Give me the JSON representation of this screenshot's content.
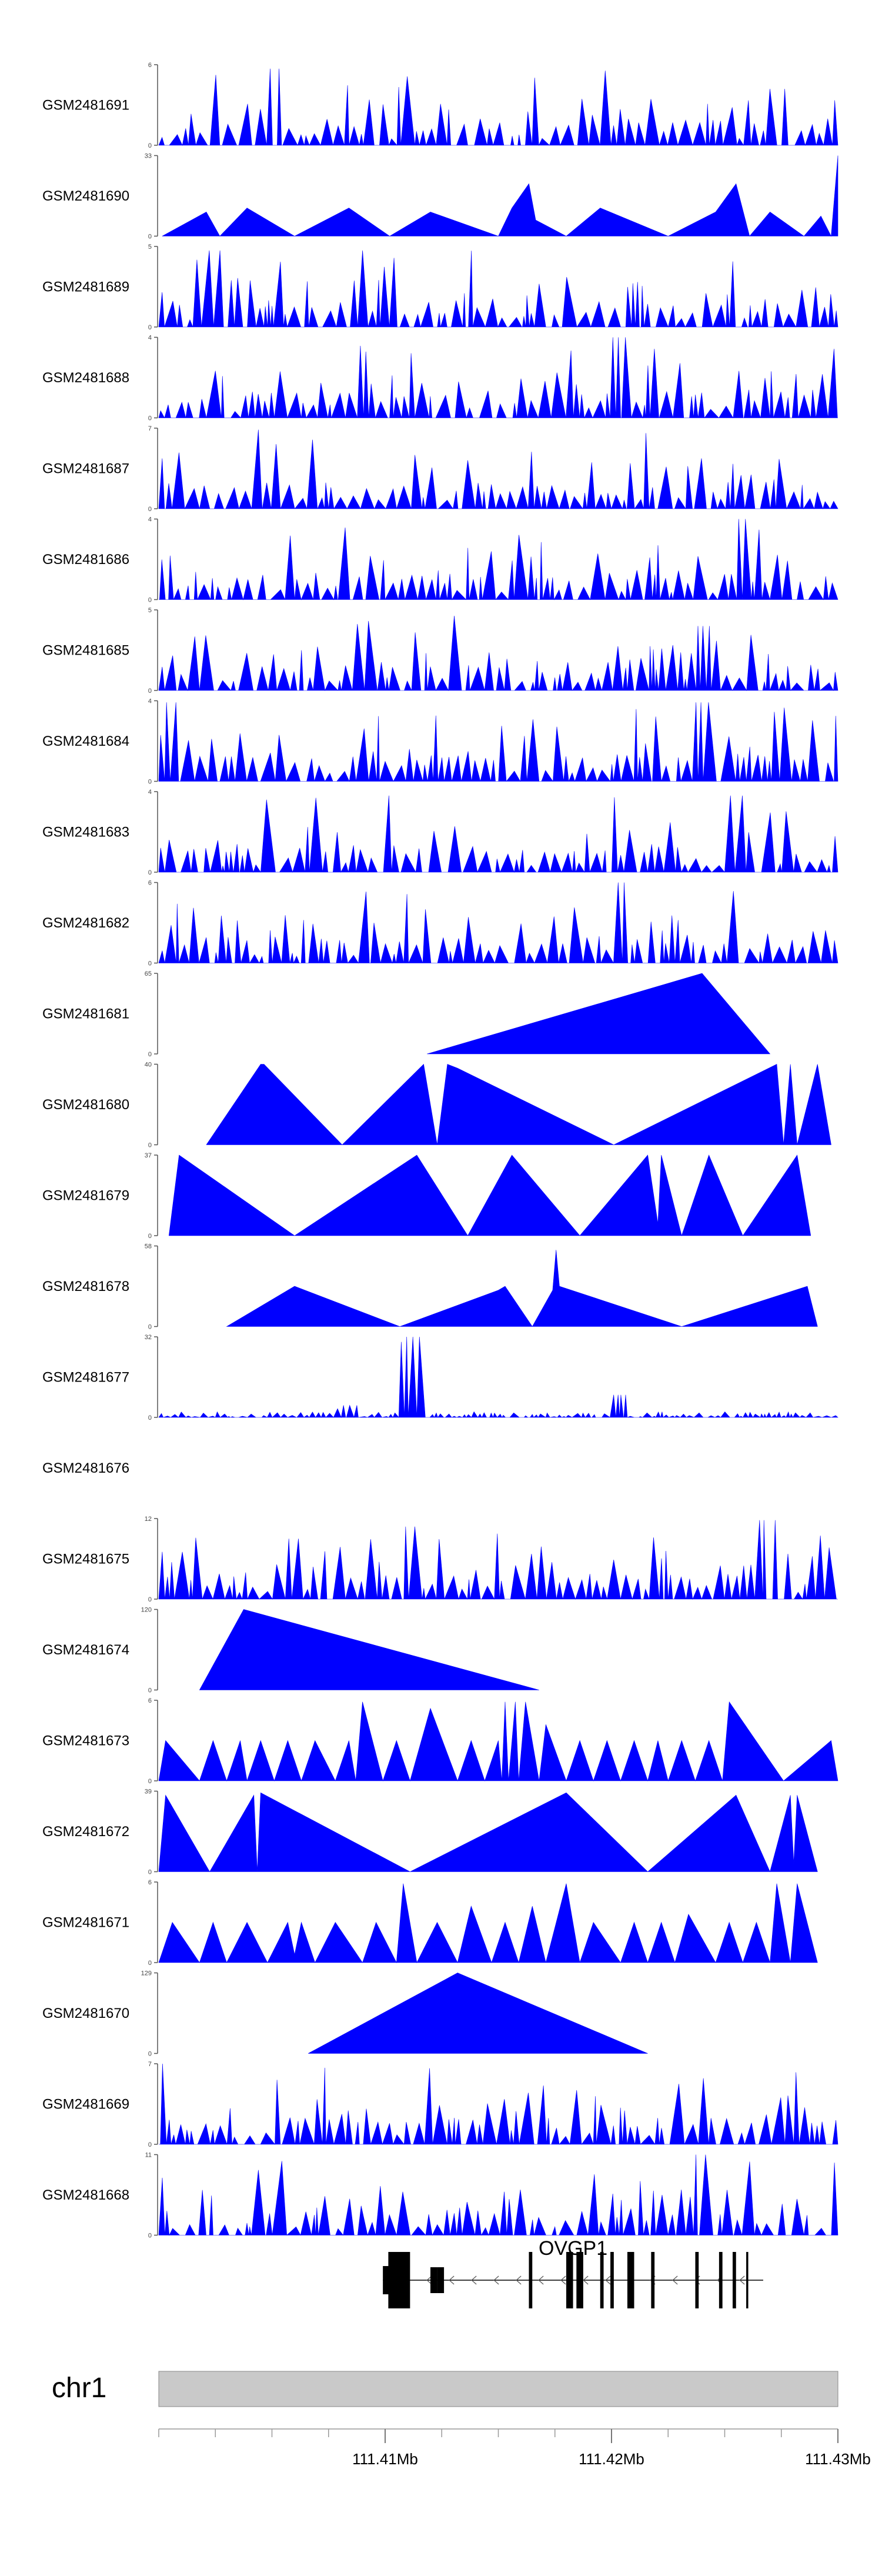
{
  "chart_data": {
    "type": "area",
    "chromosome": "chr1",
    "x_range_mb": [
      111.4,
      111.43
    ],
    "color": "#0000ff",
    "x_ticks": [
      {
        "value": 111.41,
        "label": "111.41Mb"
      },
      {
        "value": 111.42,
        "label": "111.42Mb"
      },
      {
        "value": 111.43,
        "label": "111.43Mb"
      }
    ],
    "minor_tick_step_mb": 0.0025,
    "tracks": [
      {
        "name": "GSM2481691",
        "ymax": 6,
        "ymax_label": "6",
        "kind": "spiky",
        "seed": 11,
        "peaks": [
          [
            0.16,
            0.95
          ],
          [
            0.91,
            0.7
          ]
        ]
      },
      {
        "name": "GSM2481690",
        "ymax": 33,
        "ymax_label": "33",
        "kind": "tri",
        "points": [
          [
            0.005,
            0
          ],
          [
            0.07,
            0.3
          ],
          [
            0.09,
            0
          ],
          [
            0.13,
            0.35
          ],
          [
            0.2,
            0
          ],
          [
            0.28,
            0.35
          ],
          [
            0.34,
            0
          ],
          [
            0.4,
            0.3
          ],
          [
            0.5,
            0
          ],
          [
            0.52,
            0.35
          ],
          [
            0.545,
            0.65
          ],
          [
            0.555,
            0.2
          ],
          [
            0.6,
            0
          ],
          [
            0.65,
            0.35
          ],
          [
            0.75,
            0
          ],
          [
            0.82,
            0.3
          ],
          [
            0.85,
            0.65
          ],
          [
            0.87,
            0
          ],
          [
            0.9,
            0.3
          ],
          [
            0.95,
            0
          ],
          [
            0.975,
            0.25
          ],
          [
            0.99,
            0
          ],
          [
            1.0,
            1.0
          ],
          [
            1.0,
            0
          ]
        ]
      },
      {
        "name": "GSM2481689",
        "ymax": 5,
        "ymax_label": "5",
        "kind": "spiky",
        "seed": 23,
        "peaks": [
          [
            0.08,
            0.95
          ],
          [
            0.3,
            0.95
          ]
        ]
      },
      {
        "name": "GSM2481688",
        "ymax": 4,
        "ymax_label": "4",
        "kind": "spiky",
        "seed": 37,
        "peaks": [
          [
            0.68,
            1.0
          ]
        ]
      },
      {
        "name": "GSM2481687",
        "ymax": 7,
        "ymax_label": "7",
        "kind": "spiky",
        "seed": 41,
        "peaks": [
          [
            0.14,
            0.98
          ]
        ]
      },
      {
        "name": "GSM2481686",
        "ymax": 4,
        "ymax_label": "4",
        "kind": "spiky",
        "seed": 53,
        "peaks": [
          [
            0.86,
            1.0
          ]
        ]
      },
      {
        "name": "GSM2481685",
        "ymax": 5,
        "ymax_label": "5",
        "kind": "spiky",
        "seed": 59,
        "peaks": [
          [
            0.8,
            0.8
          ]
        ]
      },
      {
        "name": "GSM2481684",
        "ymax": 4,
        "ymax_label": "4",
        "kind": "spiky",
        "seed": 61,
        "peaks": [
          [
            0.02,
            0.98
          ],
          [
            0.8,
            0.98
          ]
        ]
      },
      {
        "name": "GSM2481683",
        "ymax": 4,
        "ymax_label": "4",
        "kind": "spiky",
        "seed": 67,
        "peaks": [
          [
            0.33,
            0.95
          ],
          [
            0.85,
            0.95
          ]
        ]
      },
      {
        "name": "GSM2481682",
        "ymax": 6,
        "ymax_label": "6",
        "kind": "spiky",
        "seed": 71,
        "peaks": [
          [
            0.68,
            1.0
          ]
        ]
      },
      {
        "name": "GSM2481681",
        "ymax": 65,
        "ymax_label": "65",
        "kind": "tri",
        "points": [
          [
            0.395,
            0
          ],
          [
            0.8,
            1.0
          ],
          [
            0.9,
            0
          ]
        ]
      },
      {
        "name": "GSM2481680",
        "ymax": 40,
        "ymax_label": "40",
        "kind": "tri",
        "points": [
          [
            0.07,
            0
          ],
          [
            0.15,
            1.0
          ],
          [
            0.155,
            1.0
          ],
          [
            0.27,
            0
          ],
          [
            0.39,
            1.0
          ],
          [
            0.41,
            0
          ],
          [
            0.425,
            1.0
          ],
          [
            0.44,
            0.95
          ],
          [
            0.67,
            0
          ],
          [
            0.91,
            1.0
          ],
          [
            0.92,
            0
          ],
          [
            0.93,
            1.0
          ],
          [
            0.94,
            0
          ],
          [
            0.97,
            1.0
          ],
          [
            0.99,
            0
          ]
        ]
      },
      {
        "name": "GSM2481679",
        "ymax": 37,
        "ymax_label": "37",
        "kind": "tri",
        "points": [
          [
            0.015,
            0
          ],
          [
            0.03,
            1.0
          ],
          [
            0.2,
            0
          ],
          [
            0.38,
            1.0
          ],
          [
            0.455,
            0
          ],
          [
            0.52,
            1.0
          ],
          [
            0.62,
            0
          ],
          [
            0.72,
            1.0
          ],
          [
            0.735,
            0.15
          ],
          [
            0.74,
            1.0
          ],
          [
            0.77,
            0
          ],
          [
            0.81,
            1.0
          ],
          [
            0.86,
            0
          ],
          [
            0.94,
            1.0
          ],
          [
            0.96,
            0
          ]
        ]
      },
      {
        "name": "GSM2481678",
        "ymax": 58,
        "ymax_label": "58",
        "kind": "tri",
        "points": [
          [
            0.1,
            0
          ],
          [
            0.2,
            0.5
          ],
          [
            0.355,
            0
          ],
          [
            0.5,
            0.45
          ],
          [
            0.51,
            0.5
          ],
          [
            0.55,
            0
          ],
          [
            0.58,
            0.45
          ],
          [
            0.585,
            0.95
          ],
          [
            0.59,
            0.5
          ],
          [
            0.77,
            0
          ],
          [
            0.955,
            0.5
          ],
          [
            0.97,
            0
          ]
        ]
      },
      {
        "name": "GSM2481677",
        "ymax": 32,
        "ymax_label": "32",
        "kind": "sparse",
        "seed": 83,
        "peaks": [
          [
            0.375,
            1.0
          ],
          [
            0.28,
            0.15
          ],
          [
            0.675,
            0.28
          ]
        ]
      },
      {
        "name": "GSM2481676",
        "ymax": null,
        "ymax_label": "",
        "kind": "empty"
      },
      {
        "name": "GSM2481675",
        "ymax": 12,
        "ymax_label": "12",
        "kind": "spiky",
        "seed": 89,
        "peaks": [
          [
            0.2,
            0.75
          ],
          [
            0.89,
            0.98
          ],
          [
            0.37,
            0.9
          ]
        ]
      },
      {
        "name": "GSM2481674",
        "ymax": 120,
        "ymax_label": "120",
        "kind": "tri",
        "points": [
          [
            0.06,
            0
          ],
          [
            0.125,
            1.0
          ],
          [
            0.56,
            0
          ]
        ]
      },
      {
        "name": "GSM2481673",
        "ymax": 6,
        "ymax_label": "6",
        "kind": "tri",
        "points": [
          [
            0,
            0
          ],
          [
            0.01,
            0.5
          ],
          [
            0.06,
            0
          ],
          [
            0.08,
            0.5
          ],
          [
            0.1,
            0
          ],
          [
            0.12,
            0.5
          ],
          [
            0.13,
            0
          ],
          [
            0.15,
            0.5
          ],
          [
            0.17,
            0
          ],
          [
            0.19,
            0.5
          ],
          [
            0.21,
            0
          ],
          [
            0.23,
            0.5
          ],
          [
            0.26,
            0
          ],
          [
            0.28,
            0.5
          ],
          [
            0.29,
            0
          ],
          [
            0.3,
            0.98
          ],
          [
            0.33,
            0
          ],
          [
            0.35,
            0.5
          ],
          [
            0.37,
            0
          ],
          [
            0.4,
            0.9
          ],
          [
            0.44,
            0
          ],
          [
            0.46,
            0.5
          ],
          [
            0.48,
            0
          ],
          [
            0.5,
            0.5
          ],
          [
            0.505,
            0
          ],
          [
            0.51,
            0.98
          ],
          [
            0.515,
            0
          ],
          [
            0.525,
            0.98
          ],
          [
            0.53,
            0
          ],
          [
            0.54,
            0.98
          ],
          [
            0.56,
            0
          ],
          [
            0.57,
            0.7
          ],
          [
            0.6,
            0
          ],
          [
            0.62,
            0.5
          ],
          [
            0.64,
            0
          ],
          [
            0.66,
            0.5
          ],
          [
            0.68,
            0
          ],
          [
            0.7,
            0.5
          ],
          [
            0.72,
            0
          ],
          [
            0.735,
            0.5
          ],
          [
            0.75,
            0
          ],
          [
            0.77,
            0.5
          ],
          [
            0.79,
            0
          ],
          [
            0.81,
            0.5
          ],
          [
            0.83,
            0
          ],
          [
            0.84,
            0.98
          ],
          [
            0.92,
            0
          ],
          [
            0.99,
            0.5
          ],
          [
            1.0,
            0
          ]
        ]
      },
      {
        "name": "GSM2481672",
        "ymax": 39,
        "ymax_label": "39",
        "kind": "tri",
        "points": [
          [
            0,
            0
          ],
          [
            0.01,
            0.95
          ],
          [
            0.075,
            0
          ],
          [
            0.14,
            0.95
          ],
          [
            0.145,
            0
          ],
          [
            0.15,
            0.98
          ],
          [
            0.37,
            0
          ],
          [
            0.6,
            0.98
          ],
          [
            0.72,
            0
          ],
          [
            0.85,
            0.95
          ],
          [
            0.9,
            0
          ],
          [
            0.93,
            0.95
          ],
          [
            0.935,
            0.1
          ],
          [
            0.94,
            0.95
          ],
          [
            0.97,
            0
          ]
        ]
      },
      {
        "name": "GSM2481671",
        "ymax": 6,
        "ymax_label": "6",
        "kind": "tri",
        "points": [
          [
            0,
            0
          ],
          [
            0.02,
            0.5
          ],
          [
            0.06,
            0
          ],
          [
            0.08,
            0.5
          ],
          [
            0.1,
            0
          ],
          [
            0.13,
            0.5
          ],
          [
            0.16,
            0
          ],
          [
            0.19,
            0.5
          ],
          [
            0.2,
            0.1
          ],
          [
            0.21,
            0.5
          ],
          [
            0.23,
            0
          ],
          [
            0.26,
            0.5
          ],
          [
            0.3,
            0
          ],
          [
            0.32,
            0.5
          ],
          [
            0.35,
            0
          ],
          [
            0.36,
            0.98
          ],
          [
            0.38,
            0
          ],
          [
            0.41,
            0.5
          ],
          [
            0.44,
            0
          ],
          [
            0.46,
            0.7
          ],
          [
            0.49,
            0
          ],
          [
            0.51,
            0.5
          ],
          [
            0.53,
            0
          ],
          [
            0.55,
            0.7
          ],
          [
            0.57,
            0
          ],
          [
            0.6,
            0.98
          ],
          [
            0.62,
            0
          ],
          [
            0.64,
            0.5
          ],
          [
            0.68,
            0
          ],
          [
            0.7,
            0.5
          ],
          [
            0.72,
            0
          ],
          [
            0.74,
            0.5
          ],
          [
            0.76,
            0
          ],
          [
            0.78,
            0.6
          ],
          [
            0.82,
            0
          ],
          [
            0.84,
            0.5
          ],
          [
            0.86,
            0
          ],
          [
            0.88,
            0.5
          ],
          [
            0.9,
            0
          ],
          [
            0.91,
            0.98
          ],
          [
            0.93,
            0
          ],
          [
            0.94,
            0.98
          ],
          [
            0.97,
            0
          ]
        ]
      },
      {
        "name": "GSM2481670",
        "ymax": 129,
        "ymax_label": "129",
        "kind": "tri",
        "points": [
          [
            0.22,
            0
          ],
          [
            0.44,
            1.0
          ],
          [
            0.72,
            0
          ]
        ]
      },
      {
        "name": "GSM2481669",
        "ymax": 7,
        "ymax_label": "7",
        "kind": "spiky",
        "seed": 97,
        "peaks": [
          [
            0.0,
            1.0
          ],
          [
            0.17,
            0.8
          ],
          [
            0.76,
            0.75
          ]
        ]
      },
      {
        "name": "GSM2481668",
        "ymax": 11,
        "ymax_label": "11",
        "kind": "spiky",
        "seed": 101,
        "peaks": [
          [
            0.8,
            1.0
          ],
          [
            0.98,
            0.9
          ]
        ]
      }
    ],
    "gene": {
      "name": "OVGP1",
      "strand": "-",
      "start_frac": 0.33,
      "end_frac": 0.89,
      "exons": [
        [
          0.33,
          0.37,
          "wide"
        ],
        [
          0.4,
          0.41,
          "mid"
        ],
        [
          0.41,
          0.42,
          "mid"
        ],
        [
          0.545,
          0.55,
          "full"
        ],
        [
          0.6,
          0.61,
          "full"
        ],
        [
          0.615,
          0.625,
          "full"
        ],
        [
          0.65,
          0.655,
          "full"
        ],
        [
          0.665,
          0.67,
          "full"
        ],
        [
          0.69,
          0.7,
          "full"
        ],
        [
          0.725,
          0.73,
          "full"
        ],
        [
          0.79,
          0.795,
          "full"
        ],
        [
          0.825,
          0.83,
          "full"
        ],
        [
          0.845,
          0.85,
          "full"
        ],
        [
          0.865,
          0.868,
          "full"
        ]
      ]
    }
  }
}
